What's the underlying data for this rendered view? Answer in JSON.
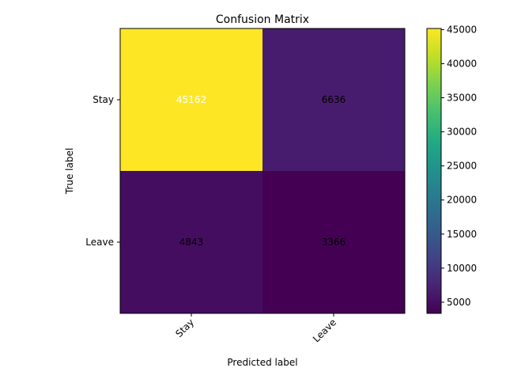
{
  "chart_data": {
    "type": "heatmap",
    "title": "Confusion Matrix",
    "xlabel": "Predicted label",
    "ylabel": "True label",
    "x_categories": [
      "Stay",
      "Leave"
    ],
    "y_categories": [
      "Stay",
      "Leave"
    ],
    "values": [
      [
        45162,
        6636
      ],
      [
        4843,
        3366
      ]
    ],
    "colormap": "viridis",
    "colorbar": {
      "range": [
        3366,
        45162
      ],
      "ticks": [
        5000,
        10000,
        15000,
        20000,
        25000,
        30000,
        35000,
        40000,
        45000
      ]
    },
    "x_tick_rotation_deg": 45,
    "grid": false
  }
}
